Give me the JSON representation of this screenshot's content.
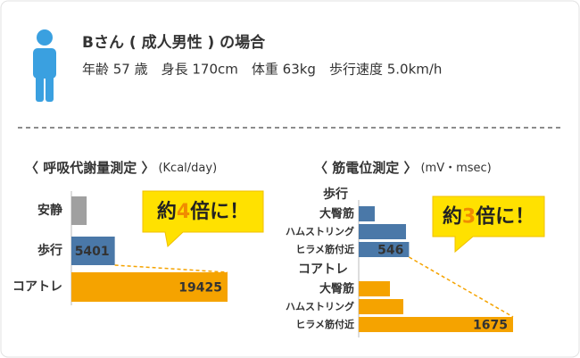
{
  "header": {
    "name": "Bさん ( 成人男性 ) の場合",
    "details": "年齢 57 歳　身長 170cm　体重 63kg　歩行速度 5.0km/h"
  },
  "chart_data": [
    {
      "type": "bar",
      "title": "〈 呼吸代謝量測定 〉",
      "unit": "(Kcal/day)",
      "categories": [
        "安静",
        "歩行",
        "コアトレ"
      ],
      "values": [
        1900,
        5401,
        19425
      ],
      "value_labels": [
        null,
        "5401",
        "19425"
      ],
      "colors": [
        "#a0a0a0",
        "#4a78a8",
        "#f5a300"
      ],
      "annotation": [
        "約",
        "4",
        "倍に！"
      ]
    },
    {
      "type": "grouped-bar",
      "title": "〈 筋電位測定 〉",
      "unit": "(mV・msec)",
      "categories": [
        "大臀筋",
        "ハムストリング",
        "ヒラメ筋付近"
      ],
      "series": [
        {
          "name": "歩行",
          "color": "#4a78a8",
          "values": [
            174,
            513,
            546
          ],
          "value_labels": [
            null,
            null,
            "546"
          ]
        },
        {
          "name": "コアトレ",
          "color": "#f5a300",
          "values": [
            339,
            484,
            1675
          ],
          "value_labels": [
            null,
            null,
            "1675"
          ]
        }
      ],
      "annotation": [
        "約",
        "3",
        "倍に！"
      ]
    }
  ]
}
